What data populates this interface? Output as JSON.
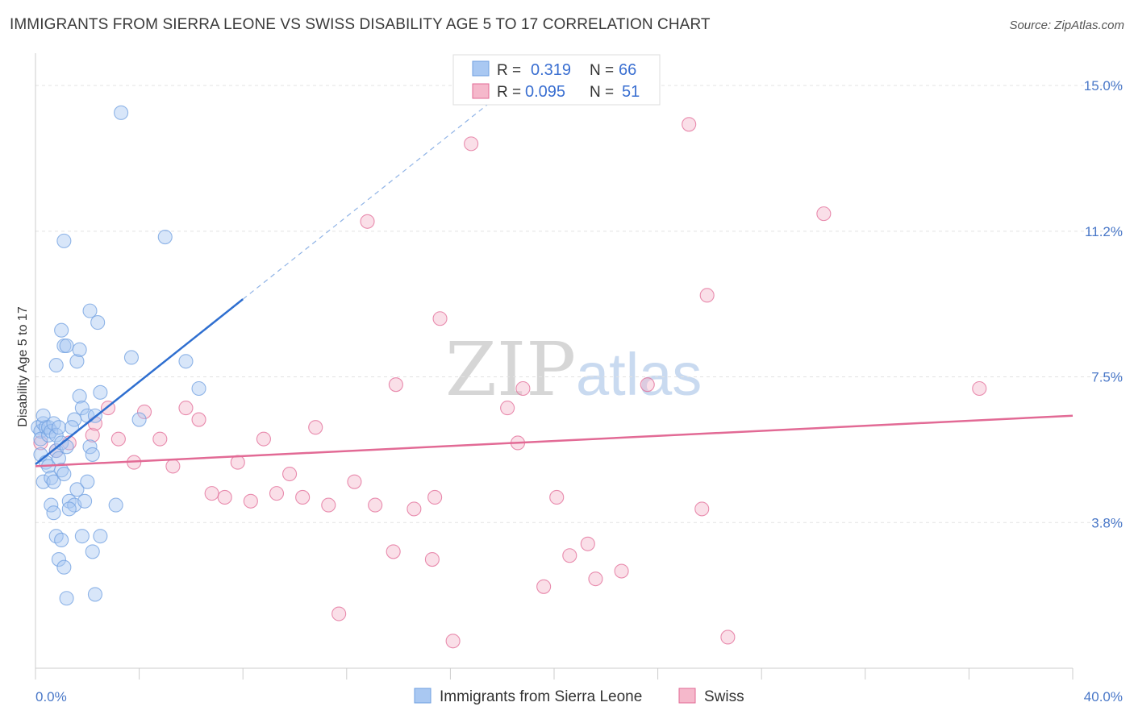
{
  "title": "IMMIGRANTS FROM SIERRA LEONE VS SWISS DISABILITY AGE 5 TO 17 CORRELATION CHART",
  "source": "Source: ZipAtlas.com",
  "watermark": {
    "part1": "ZIP",
    "part2": "atlas"
  },
  "legend_box": {
    "rows": [
      {
        "r_label": "R =",
        "r_value": "0.319",
        "n_label": "N =",
        "n_value": "66",
        "color": "#a9c8f2"
      },
      {
        "r_label": "R =",
        "r_value": "0.095",
        "n_label": "N =",
        "n_value": "51",
        "color": "#f5b8cb"
      }
    ]
  },
  "chart_data": {
    "type": "scatter",
    "ylabel": "Disability Age 5 to 17",
    "x_ticks": [
      "0.0%",
      "40.0%"
    ],
    "y_ticks": [
      "15.0%",
      "11.2%",
      "7.5%",
      "3.8%"
    ],
    "y_tick_values": [
      15.0,
      11.25,
      7.5,
      3.75
    ],
    "xlim": [
      0,
      40
    ],
    "ylim": [
      0,
      15.5
    ],
    "series": [
      {
        "name": "Immigrants from Sierra Leone",
        "color": "#6f9fe0",
        "fill": "#a9c8f2",
        "trend": {
          "x": [
            0,
            8.0
          ],
          "y": [
            5.25,
            9.5
          ],
          "extend_to_x": 17.5
        },
        "points": [
          [
            0.1,
            6.2
          ],
          [
            0.2,
            6.1
          ],
          [
            0.2,
            5.9
          ],
          [
            0.3,
            6.3
          ],
          [
            0.4,
            6.2
          ],
          [
            0.5,
            6.0
          ],
          [
            0.2,
            5.5
          ],
          [
            0.3,
            6.5
          ],
          [
            0.5,
            6.2
          ],
          [
            0.6,
            6.1
          ],
          [
            0.7,
            6.3
          ],
          [
            0.8,
            6.0
          ],
          [
            0.9,
            6.2
          ],
          [
            0.3,
            4.8
          ],
          [
            0.4,
            5.3
          ],
          [
            0.5,
            5.2
          ],
          [
            0.6,
            4.9
          ],
          [
            0.7,
            4.8
          ],
          [
            0.8,
            5.6
          ],
          [
            0.9,
            5.4
          ],
          [
            1.0,
            5.1
          ],
          [
            1.1,
            5.0
          ],
          [
            1.0,
            5.8
          ],
          [
            1.2,
            5.7
          ],
          [
            0.6,
            4.2
          ],
          [
            0.7,
            4.0
          ],
          [
            0.8,
            3.4
          ],
          [
            1.0,
            3.3
          ],
          [
            0.9,
            2.8
          ],
          [
            1.1,
            2.6
          ],
          [
            1.2,
            1.8
          ],
          [
            1.3,
            4.3
          ],
          [
            1.5,
            4.2
          ],
          [
            1.6,
            4.6
          ],
          [
            1.3,
            4.1
          ],
          [
            1.8,
            3.4
          ],
          [
            1.9,
            4.3
          ],
          [
            2.2,
            3.0
          ],
          [
            2.3,
            1.9
          ],
          [
            2.5,
            3.4
          ],
          [
            0.8,
            7.8
          ],
          [
            1.0,
            8.7
          ],
          [
            1.1,
            8.3
          ],
          [
            1.2,
            8.3
          ],
          [
            1.6,
            7.9
          ],
          [
            1.7,
            8.2
          ],
          [
            1.7,
            7.0
          ],
          [
            1.8,
            6.7
          ],
          [
            2.0,
            6.5
          ],
          [
            1.5,
            6.4
          ],
          [
            1.4,
            6.2
          ],
          [
            2.1,
            5.7
          ],
          [
            2.2,
            5.5
          ],
          [
            2.0,
            4.8
          ],
          [
            2.3,
            6.5
          ],
          [
            2.5,
            7.1
          ],
          [
            2.1,
            9.2
          ],
          [
            2.4,
            8.9
          ],
          [
            3.1,
            4.2
          ],
          [
            3.7,
            8.0
          ],
          [
            4.0,
            6.4
          ],
          [
            5.8,
            7.9
          ],
          [
            6.3,
            7.2
          ],
          [
            5.0,
            11.1
          ],
          [
            1.1,
            11.0
          ],
          [
            3.3,
            14.3
          ]
        ]
      },
      {
        "name": "Swiss",
        "color": "#e26a95",
        "fill": "#f5b8cb",
        "trend": {
          "x": [
            0,
            40
          ],
          "y": [
            5.2,
            6.5
          ]
        },
        "points": [
          [
            0.2,
            5.8
          ],
          [
            0.8,
            5.6
          ],
          [
            1.3,
            5.8
          ],
          [
            2.2,
            6.0
          ],
          [
            2.3,
            6.3
          ],
          [
            2.8,
            6.7
          ],
          [
            3.2,
            5.9
          ],
          [
            3.8,
            5.3
          ],
          [
            4.2,
            6.6
          ],
          [
            4.8,
            5.9
          ],
          [
            5.3,
            5.2
          ],
          [
            5.8,
            6.7
          ],
          [
            6.3,
            6.4
          ],
          [
            6.8,
            4.5
          ],
          [
            7.3,
            4.4
          ],
          [
            7.8,
            5.3
          ],
          [
            8.3,
            4.3
          ],
          [
            8.8,
            5.9
          ],
          [
            9.3,
            4.5
          ],
          [
            9.8,
            5.0
          ],
          [
            10.3,
            4.4
          ],
          [
            10.8,
            6.2
          ],
          [
            11.3,
            4.2
          ],
          [
            12.3,
            4.8
          ],
          [
            13.1,
            4.2
          ],
          [
            12.8,
            11.5
          ],
          [
            13.8,
            3.0
          ],
          [
            13.9,
            7.3
          ],
          [
            14.6,
            4.1
          ],
          [
            15.3,
            2.8
          ],
          [
            15.4,
            4.4
          ],
          [
            15.6,
            9.0
          ],
          [
            16.1,
            0.7
          ],
          [
            11.7,
            1.4
          ],
          [
            16.8,
            13.5
          ],
          [
            18.2,
            6.7
          ],
          [
            18.6,
            5.8
          ],
          [
            18.8,
            7.2
          ],
          [
            19.6,
            2.1
          ],
          [
            20.1,
            4.4
          ],
          [
            20.6,
            2.9
          ],
          [
            21.3,
            3.2
          ],
          [
            21.6,
            2.3
          ],
          [
            22.6,
            2.5
          ],
          [
            23.6,
            7.3
          ],
          [
            25.2,
            14.0
          ],
          [
            25.7,
            4.1
          ],
          [
            25.9,
            9.6
          ],
          [
            26.7,
            0.8
          ],
          [
            30.4,
            11.7
          ],
          [
            36.4,
            7.2
          ]
        ]
      }
    ],
    "bottom_legend": [
      "Immigrants from Sierra Leone",
      "Swiss"
    ],
    "grid": "horizontal dashed"
  }
}
